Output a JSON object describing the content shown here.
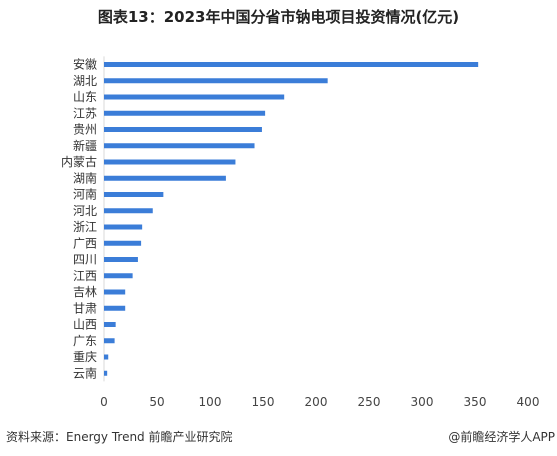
{
  "chart_data": {
    "type": "bar",
    "orientation": "horizontal",
    "title": "图表13：2023年中国分省市钠电项目投资情况(亿元)",
    "categories": [
      "安徽",
      "湖北",
      "山东",
      "江苏",
      "贵州",
      "新疆",
      "内蒙古",
      "湖南",
      "河南",
      "河北",
      "浙江",
      "广西",
      "四川",
      "江西",
      "吉林",
      "甘肃",
      "山西",
      "广东",
      "重庆",
      "云南"
    ],
    "values": [
      353,
      211,
      170,
      152,
      149,
      142,
      124,
      115,
      56,
      46,
      36,
      35,
      32,
      27,
      20,
      20,
      11,
      10,
      4,
      3
    ],
    "xlim": [
      0,
      400
    ],
    "xticks": [
      "0",
      "50",
      "100",
      "150",
      "200",
      "250",
      "300",
      "350",
      "400"
    ],
    "xlabel": "",
    "ylabel": "",
    "grid": false,
    "bar_color": "#3b7dd8"
  },
  "footer": {
    "source": "资料来源：Energy Trend 前瞻产业研究院",
    "credit": "@前瞻经济学人APP"
  }
}
